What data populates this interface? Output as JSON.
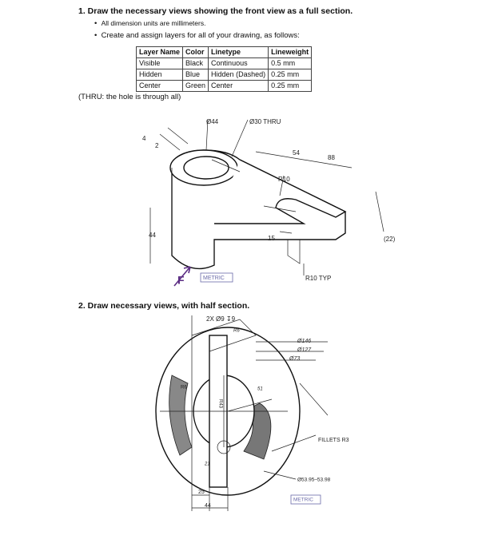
{
  "question1": {
    "title": "1. Draw the necessary views showing the front view as a full section.",
    "bullets": [
      "All dimension units are millimeters.",
      "Create and assign layers for all of your drawing, as follows:"
    ],
    "table": {
      "header": [
        "Layer Name",
        "Color",
        "Linetype",
        "Lineweight"
      ],
      "rows": [
        [
          "Visible",
          "Black",
          "Continuous",
          "0.5 mm"
        ],
        [
          "Hidden",
          "Blue",
          "Hidden (Dashed)",
          "0.25 mm"
        ],
        [
          "Center",
          "Green",
          "Center",
          "0.25 mm"
        ]
      ]
    },
    "note": "(THRU: the hole is through all)",
    "figure": {
      "labels": [
        "Ø44",
        "Ø30 THRU",
        "4",
        "2",
        "54",
        "88",
        "R10",
        "44",
        "15",
        "(22)",
        "R10 TYP",
        "METRIC",
        "F"
      ]
    }
  },
  "question2": {
    "title": "2. Draw necessary views, with half section.",
    "figure": {
      "labels": [
        "2X Ø9 ↧9",
        "R6",
        "Ø146",
        "Ø127",
        "Ø73",
        "R6",
        "R43",
        "51",
        "21",
        "FILLETS R3",
        "Ø53.95–53.98",
        "25",
        "44",
        "METRIC"
      ]
    }
  }
}
